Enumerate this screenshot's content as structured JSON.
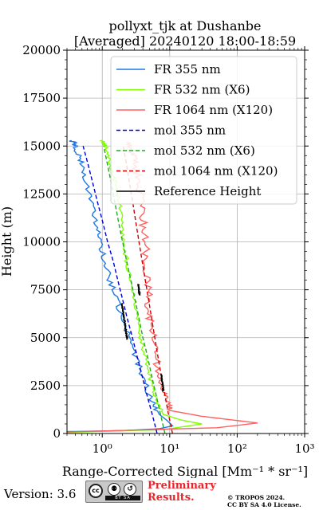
{
  "chart_data": {
    "type": "line",
    "title": "pollyxt_tjk at Dushanbe",
    "subtitle": "[Averaged] 20240120 18:00-18:59",
    "xlabel": "Range-Corrected Signal [Mm⁻¹ * sr⁻¹]",
    "ylabel": "Height (m)",
    "xscale": "log",
    "xlim": [
      0.3,
      1000
    ],
    "ylim": [
      0,
      20000
    ],
    "x_ticks": [
      1,
      10,
      100,
      1000
    ],
    "x_tick_labels": [
      "10⁰",
      "10¹",
      "10²",
      "10³"
    ],
    "y_ticks": [
      0,
      2500,
      5000,
      7500,
      10000,
      12500,
      15000,
      17500,
      20000
    ],
    "y_tick_labels": [
      "0",
      "2500",
      "5000",
      "7500",
      "10000",
      "12500",
      "15000",
      "17500",
      "20000"
    ],
    "grid": true,
    "legend_position": "top-right",
    "series": [
      {
        "name": "FR 355 nm",
        "color": "#1f77e4",
        "style": "solid",
        "points": [
          [
            0.3,
            100
          ],
          [
            2,
            150
          ],
          [
            7,
            250
          ],
          [
            11,
            400
          ],
          [
            9,
            700
          ],
          [
            7,
            1000
          ],
          [
            5,
            2000
          ],
          [
            3.5,
            3500
          ],
          [
            2.5,
            5000
          ],
          [
            1.8,
            6500
          ],
          [
            1.3,
            8000
          ],
          [
            1.0,
            9500
          ],
          [
            0.8,
            11000
          ],
          [
            0.65,
            12500
          ],
          [
            0.5,
            14000
          ],
          [
            0.4,
            15000
          ],
          [
            0.35,
            15300
          ]
        ]
      },
      {
        "name": "FR 532 nm (X6)",
        "color": "#7fff00",
        "style": "solid",
        "points": [
          [
            0.3,
            60
          ],
          [
            8,
            200
          ],
          [
            30,
            500
          ],
          [
            15,
            700
          ],
          [
            8,
            1000
          ],
          [
            6,
            2000
          ],
          [
            5,
            3000
          ],
          [
            4,
            4500
          ],
          [
            3.3,
            6000
          ],
          [
            2.8,
            7500
          ],
          [
            2.3,
            9000
          ],
          [
            2.0,
            10500
          ],
          [
            1.8,
            12000
          ],
          [
            1.6,
            13000
          ],
          [
            1.3,
            14000
          ],
          [
            1.1,
            15000
          ],
          [
            1.0,
            15300
          ]
        ]
      },
      {
        "name": "FR 1064 nm (X120)",
        "color": "#ff6060",
        "style": "solid",
        "points": [
          [
            0.3,
            80
          ],
          [
            50,
            300
          ],
          [
            200,
            550
          ],
          [
            30,
            900
          ],
          [
            10,
            1200
          ],
          [
            8,
            2000
          ],
          [
            7,
            3000
          ],
          [
            6,
            4500
          ],
          [
            5,
            6000
          ],
          [
            4.8,
            7500
          ],
          [
            4.5,
            9000
          ],
          [
            4.2,
            10500
          ],
          [
            3.8,
            12000
          ],
          [
            3.3,
            13500
          ],
          [
            2.8,
            14500
          ],
          [
            2.3,
            15200
          ]
        ]
      },
      {
        "name": "mol 355 nm",
        "color": "#0000c8",
        "style": "dashed",
        "points": [
          [
            6.5,
            0
          ],
          [
            5.5,
            1000
          ],
          [
            4.6,
            2000
          ],
          [
            3.9,
            3000
          ],
          [
            3.3,
            4000
          ],
          [
            2.8,
            5000
          ],
          [
            2.35,
            6000
          ],
          [
            2.0,
            7000
          ],
          [
            1.7,
            8000
          ],
          [
            1.45,
            9000
          ],
          [
            1.2,
            10000
          ],
          [
            1.02,
            11000
          ],
          [
            0.86,
            12000
          ],
          [
            0.73,
            13000
          ],
          [
            0.62,
            14000
          ],
          [
            0.52,
            15000
          ]
        ]
      },
      {
        "name": "mol 532 nm (X6)",
        "color": "#22aa22",
        "style": "dashed",
        "points": [
          [
            8.5,
            0
          ],
          [
            7.3,
            1000
          ],
          [
            6.3,
            2000
          ],
          [
            5.4,
            3000
          ],
          [
            4.7,
            4000
          ],
          [
            4.0,
            5000
          ],
          [
            3.5,
            6000
          ],
          [
            3.05,
            7000
          ],
          [
            2.65,
            8000
          ],
          [
            2.3,
            9000
          ],
          [
            2.0,
            10000
          ],
          [
            1.75,
            11000
          ],
          [
            1.55,
            12000
          ],
          [
            1.37,
            13000
          ],
          [
            1.2,
            14000
          ],
          [
            1.05,
            15000
          ]
        ]
      },
      {
        "name": "mol 1064 nm (X120)",
        "color": "#cc0000",
        "style": "dashed",
        "points": [
          [
            11,
            0
          ],
          [
            9.6,
            1000
          ],
          [
            8.5,
            2000
          ],
          [
            7.5,
            3000
          ],
          [
            6.7,
            4000
          ],
          [
            6.0,
            5000
          ],
          [
            5.4,
            6000
          ],
          [
            4.85,
            7000
          ],
          [
            4.35,
            8000
          ],
          [
            3.9,
            9000
          ],
          [
            3.5,
            10000
          ],
          [
            3.15,
            11000
          ],
          [
            2.85,
            12000
          ],
          [
            2.55,
            13000
          ],
          [
            2.3,
            14000
          ],
          [
            2.05,
            15000
          ]
        ]
      },
      {
        "name": "Reference Height",
        "color": "#000000",
        "style": "solid",
        "segments": [
          [
            [
              1.95,
              6800
            ],
            [
              2.05,
              6300
            ],
            [
              2.15,
              5800
            ],
            [
              2.25,
              5300
            ],
            [
              2.35,
              4900
            ]
          ],
          [
            [
              3.4,
              7800
            ],
            [
              3.5,
              7500
            ],
            [
              3.6,
              7200
            ]
          ],
          [
            [
              7.5,
              3100
            ],
            [
              7.8,
              2600
            ],
            [
              8.0,
              2200
            ]
          ]
        ]
      }
    ]
  },
  "footer": {
    "version": "Version: 3.6",
    "cc_badge_text": "BY   SA",
    "cc_badge_logo": "cc",
    "preliminary_line1": "Preliminary",
    "preliminary_line2": "Results.",
    "copyright_line1": "© TROPOS 2024.",
    "copyright_line2": "CC BY SA 4.0 License."
  }
}
